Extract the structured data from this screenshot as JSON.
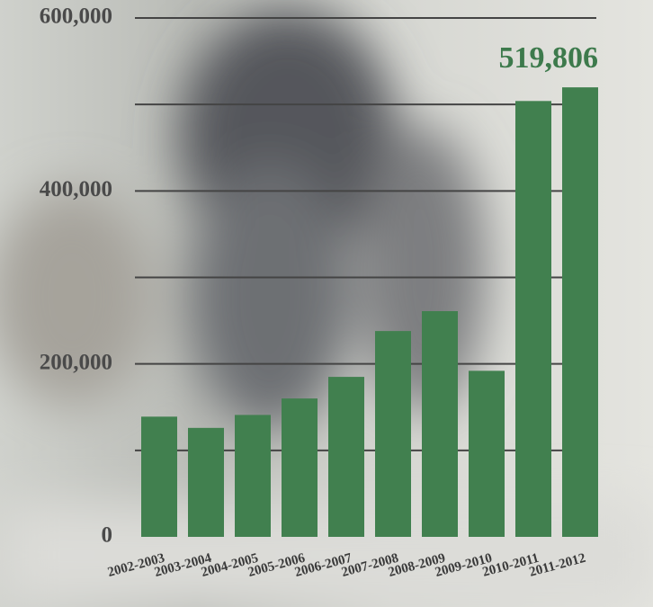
{
  "chart_data": {
    "type": "bar",
    "categories": [
      "2002-2003",
      "2003-2004",
      "2004-2005",
      "2005-2006",
      "2006-2007",
      "2007-2008",
      "2008-2009",
      "2009-2010",
      "2010-2011",
      "2011-2012"
    ],
    "values": [
      139000,
      126000,
      141000,
      160000,
      185000,
      238000,
      261000,
      192000,
      504000,
      519806
    ],
    "value_labels": [
      null,
      null,
      null,
      null,
      null,
      null,
      null,
      null,
      null,
      "519,806"
    ],
    "color": "#41804f",
    "ylim": [
      0,
      600000
    ],
    "yticks": [
      0,
      {
        "value": 200000,
        "label": "200,000"
      },
      {
        "value": 400000,
        "label": "400,000"
      },
      {
        "value": 600000,
        "label": "600,000"
      }
    ],
    "minor_yticks": [
      100000,
      300000,
      500000
    ],
    "grid": true
  }
}
